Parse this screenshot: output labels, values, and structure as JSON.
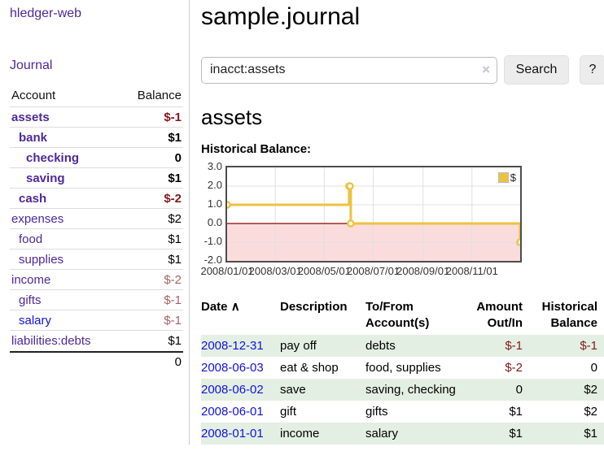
{
  "app": {
    "brand": "hledger-web",
    "nav_journal": "Journal"
  },
  "sidebar": {
    "header": {
      "account": "Account",
      "balance": "Balance"
    },
    "accounts": [
      {
        "name": "assets",
        "indent": 0,
        "bold": true,
        "balance": "$-1",
        "balance_style": "neg-strong"
      },
      {
        "name": "bank",
        "indent": 1,
        "bold": true,
        "balance": "$1",
        "balance_style": "pos"
      },
      {
        "name": "checking",
        "indent": 2,
        "bold": true,
        "balance": "0",
        "balance_style": "pos"
      },
      {
        "name": "saving",
        "indent": 2,
        "bold": true,
        "balance": "$1",
        "balance_style": "pos"
      },
      {
        "name": "cash",
        "indent": 1,
        "bold": true,
        "balance": "$-2",
        "balance_style": "neg-strong"
      },
      {
        "name": "expenses",
        "indent": 0,
        "bold": false,
        "balance": "$2",
        "balance_style": "pos"
      },
      {
        "name": "food",
        "indent": 1,
        "bold": false,
        "balance": "$1",
        "balance_style": "pos"
      },
      {
        "name": "supplies",
        "indent": 1,
        "bold": false,
        "balance": "$1",
        "balance_style": "pos"
      },
      {
        "name": "income",
        "indent": 0,
        "bold": false,
        "balance": "$-2",
        "balance_style": "neg-soft"
      },
      {
        "name": "gifts",
        "indent": 1,
        "bold": false,
        "balance": "$-1",
        "balance_style": "neg-soft"
      },
      {
        "name": "salary",
        "indent": 1,
        "bold": false,
        "balance": "$-1",
        "balance_style": "neg-soft",
        "link_color": "blue"
      },
      {
        "name": "liabilities:debts",
        "indent": 0,
        "bold": false,
        "balance": "$1",
        "balance_style": "pos"
      }
    ],
    "total": "0"
  },
  "header": {
    "title": "sample.journal"
  },
  "search": {
    "value": "inacct:assets",
    "clear_icon": "×",
    "button_label": "Search",
    "help_label": "?"
  },
  "account_page": {
    "heading": "assets",
    "chart_label": "Historical Balance:"
  },
  "chart_data": {
    "type": "line",
    "title": "Historical Balance",
    "step": true,
    "series": [
      {
        "name": "$",
        "color": "#edc240",
        "points": [
          [
            "2008-01-01",
            1
          ],
          [
            "2008-06-01",
            2
          ],
          [
            "2008-06-02",
            2
          ],
          [
            "2008-06-03",
            0
          ],
          [
            "2008-12-31",
            -1
          ]
        ]
      }
    ],
    "xlim": [
      "2008-01-01",
      "2008-12-31"
    ],
    "ylim": [
      -2,
      3
    ],
    "x_ticks": [
      {
        "date": "2008-01-01",
        "label": "2008/01/01"
      },
      {
        "date": "2008-03-01",
        "label": "2008/03/01"
      },
      {
        "date": "2008-05-01",
        "label": "2008/05/01"
      },
      {
        "date": "2008-07-01",
        "label": "2008/07/01"
      },
      {
        "date": "2008-09-01",
        "label": "2008/09/01"
      },
      {
        "date": "2008-11-01",
        "label": "2008/11/01"
      }
    ],
    "y_ticks": [
      "3.0",
      "2.0",
      "1.0",
      "0.0",
      "-1.0",
      "-2.0"
    ],
    "grid": true,
    "legend": {
      "label": "$",
      "position": "top-right"
    },
    "colors": {
      "line": "#edc240",
      "marker_fill": "#ffffff",
      "negative_region": "#fbdcdc",
      "zero_line": "#8b0000",
      "gridline": "#e0e0e0",
      "border": "#4d4d4d"
    }
  },
  "register": {
    "columns": [
      {
        "label": "Date"
      },
      {
        "label": "Description"
      },
      {
        "label": "To/From Account(s)"
      },
      {
        "label": "Amount Out/In"
      },
      {
        "label": "Historical Balance"
      }
    ],
    "sort_asc_icon": "∧",
    "rows": [
      {
        "date": "2008-12-31",
        "description": "pay off",
        "accounts": "debts",
        "amount": "$-1",
        "amount_neg": true,
        "balance": "$-1",
        "balance_neg": true
      },
      {
        "date": "2008-06-03",
        "description": "eat & shop",
        "accounts": "food, supplies",
        "amount": "$-2",
        "amount_neg": true,
        "balance": "0",
        "balance_neg": false
      },
      {
        "date": "2008-06-02",
        "description": "save",
        "accounts": "saving, checking",
        "amount": "0",
        "amount_neg": false,
        "balance": "$2",
        "balance_neg": false
      },
      {
        "date": "2008-06-01",
        "description": "gift",
        "accounts": "gifts",
        "amount": "$1",
        "amount_neg": false,
        "balance": "$2",
        "balance_neg": false
      },
      {
        "date": "2008-01-01",
        "description": "income",
        "accounts": "salary",
        "amount": "$1",
        "amount_neg": false,
        "balance": "$1",
        "balance_neg": false
      }
    ]
  }
}
